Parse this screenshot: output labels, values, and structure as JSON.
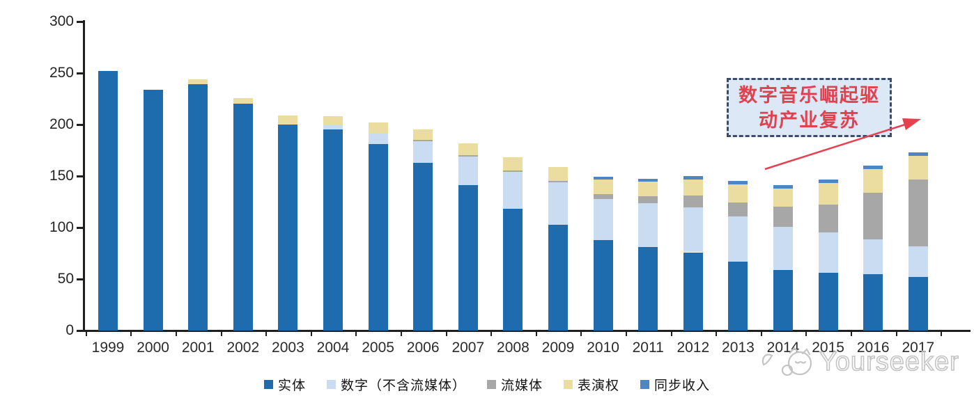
{
  "chart_data": {
    "type": "bar",
    "subtype": "stacked",
    "categories": [
      "1999",
      "2000",
      "2001",
      "2002",
      "2003",
      "2004",
      "2005",
      "2006",
      "2007",
      "2008",
      "2009",
      "2010",
      "2011",
      "2012",
      "2013",
      "2014",
      "2015",
      "2016",
      "2017"
    ],
    "series": [
      {
        "name": "实体",
        "color": "#1E6CAD",
        "values": [
          252,
          234,
          239,
          220,
          200,
          195,
          181,
          163,
          141,
          118,
          103,
          88,
          81,
          76,
          67,
          59,
          56,
          55,
          52
        ]
      },
      {
        "name": "数字（不含流媒体）",
        "color": "#C9DCF2",
        "values": [
          0,
          0,
          0,
          0,
          0,
          5,
          11,
          21,
          28,
          36,
          41,
          40,
          42.5,
          43.5,
          44,
          41.5,
          39.5,
          33.5,
          29.5
        ]
      },
      {
        "name": "流媒体",
        "color": "#A7A7A7",
        "values": [
          0,
          0,
          0,
          0,
          0,
          0,
          0,
          1,
          1,
          1.5,
          1.5,
          4.5,
          7,
          11.5,
          13.5,
          19.5,
          27,
          45.5,
          65
        ]
      },
      {
        "name": "表演权",
        "color": "#EBDCA0",
        "values": [
          0,
          0,
          5,
          6,
          9,
          8,
          10,
          10,
          12,
          12.5,
          13,
          14,
          14,
          15.5,
          17.5,
          18,
          20.5,
          22.5,
          23
        ]
      },
      {
        "name": "同步收入",
        "color": "#4E86C4",
        "values": [
          0,
          0,
          0,
          0,
          0,
          0,
          0,
          0,
          0,
          0,
          0,
          3,
          3,
          3.5,
          3.5,
          3,
          3.5,
          4,
          3.5
        ]
      }
    ],
    "title": "",
    "xlabel": "",
    "ylabel": "",
    "ylim": [
      0,
      300
    ],
    "yticks": [
      0,
      50,
      100,
      150,
      200,
      250,
      300
    ],
    "grid": false,
    "legend_position": "bottom"
  },
  "annotation": {
    "line1": "数字音乐崛起驱",
    "line2": "动产业复苏",
    "text_color": "#E0414F",
    "fill_color": "#DCE8F5",
    "border_color": "#3C4C68",
    "arrow_color": "#E8404F"
  },
  "watermark": {
    "text": "Yourseeker",
    "color": "#C4C4C4"
  },
  "axis": {
    "line_color": "#1F1F1F",
    "label_color": "#262626"
  }
}
